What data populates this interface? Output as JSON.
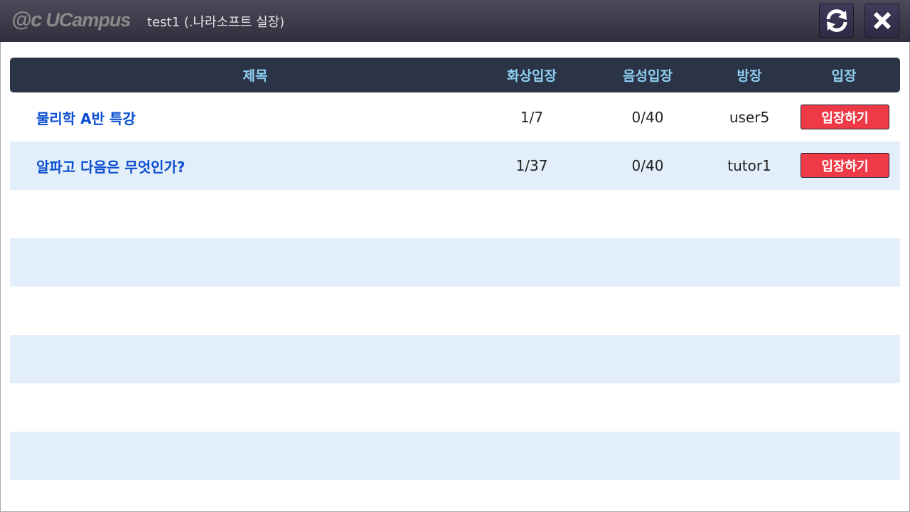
{
  "window": {
    "logo": "UCampus",
    "logo_mark": "@c",
    "title": "test1 (.나라소프트 실장)",
    "refresh_icon": "refresh-icon",
    "close_icon": "close-icon"
  },
  "table": {
    "headers": {
      "title": "제목",
      "video": "화상입장",
      "audio": "음성입장",
      "host": "방장",
      "enter": "입장"
    },
    "rows": [
      {
        "title": "물리학 A반 특강",
        "video": "1/7",
        "audio": "0/40",
        "host": "user5",
        "enter": "입장하기"
      },
      {
        "title": "알파고 다음은 무엇인가?",
        "video": "1/37",
        "audio": "0/40",
        "host": "tutor1",
        "enter": "입장하기"
      }
    ]
  },
  "colors": {
    "header_bg": "#2b3447",
    "header_text": "#8fd0f3",
    "title_text": "#0b4fd1",
    "enter_button": "#ee3a46",
    "alt_row": "#e2eefa"
  }
}
